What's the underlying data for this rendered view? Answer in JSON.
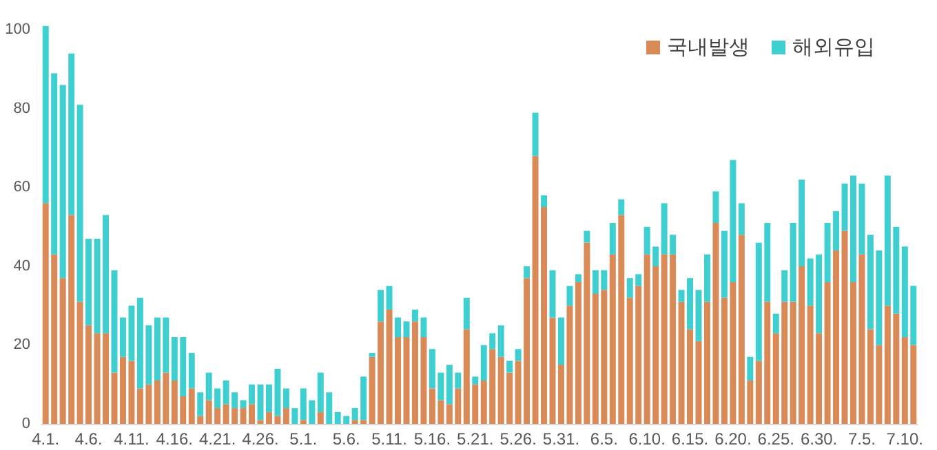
{
  "chart_data": {
    "type": "bar",
    "stacked": true,
    "categories": [
      "4.1.",
      null,
      null,
      null,
      null,
      "4.6.",
      null,
      null,
      null,
      null,
      "4.11.",
      null,
      null,
      null,
      null,
      "4.16.",
      null,
      null,
      null,
      null,
      "4.21.",
      null,
      null,
      null,
      null,
      "4.26.",
      null,
      null,
      null,
      null,
      "5.1.",
      null,
      null,
      null,
      null,
      "5.6.",
      null,
      null,
      null,
      null,
      "5.11.",
      null,
      null,
      null,
      null,
      "5.16.",
      null,
      null,
      null,
      null,
      "5.21.",
      null,
      null,
      null,
      null,
      "5.26.",
      null,
      null,
      null,
      null,
      "5.31.",
      null,
      null,
      null,
      null,
      "6.5.",
      null,
      null,
      null,
      null,
      "6.10.",
      null,
      null,
      null,
      null,
      "6.15.",
      null,
      null,
      null,
      null,
      "6.20.",
      null,
      null,
      null,
      null,
      "6.25.",
      null,
      null,
      null,
      null,
      "6.30.",
      null,
      null,
      null,
      null,
      "7.5.",
      null,
      null,
      null,
      null,
      "7.10.",
      null
    ],
    "series": [
      {
        "name": "국내발생",
        "color": "#d98a56",
        "values": [
          56,
          43,
          37,
          53,
          31,
          25,
          23,
          23,
          13,
          17,
          16,
          9,
          10,
          11,
          13,
          11,
          7,
          9,
          2,
          6,
          4,
          5,
          4,
          4,
          5,
          1,
          3,
          2,
          4,
          0,
          1,
          0,
          3,
          0,
          0,
          0,
          1,
          1,
          17,
          26,
          29,
          22,
          22,
          26,
          22,
          9,
          6,
          5,
          9,
          24,
          10,
          11,
          19,
          17,
          13,
          16,
          37,
          68,
          55,
          27,
          15,
          30,
          36,
          46,
          33,
          34,
          43,
          53,
          32,
          35,
          43,
          40,
          43,
          43,
          31,
          24,
          21,
          31,
          51,
          32,
          36,
          48,
          11,
          16,
          31,
          23,
          31,
          31,
          40,
          30,
          23,
          36,
          44,
          49,
          36,
          43,
          24,
          20,
          30,
          28,
          22,
          20
        ]
      },
      {
        "name": "해외유입",
        "color": "#40cfd0",
        "values": [
          45,
          46,
          49,
          41,
          50,
          22,
          24,
          30,
          26,
          10,
          14,
          23,
          15,
          16,
          14,
          11,
          15,
          9,
          6,
          7,
          5,
          6,
          4,
          2,
          5,
          9,
          7,
          12,
          5,
          4,
          8,
          6,
          10,
          8,
          3,
          2,
          3,
          11,
          1,
          8,
          6,
          5,
          4,
          3,
          5,
          10,
          7,
          10,
          4,
          8,
          2,
          9,
          4,
          8,
          3,
          3,
          3,
          11,
          3,
          12,
          12,
          5,
          2,
          3,
          6,
          5,
          8,
          4,
          5,
          3,
          7,
          5,
          13,
          5,
          3,
          13,
          13,
          12,
          8,
          17,
          31,
          8,
          6,
          30,
          20,
          5,
          8,
          20,
          22,
          12,
          20,
          15,
          10,
          12,
          27,
          18,
          24,
          24,
          33,
          22,
          23,
          15
        ]
      }
    ],
    "ylim": [
      0,
      102
    ],
    "yticks": [
      0,
      20,
      40,
      60,
      80,
      100
    ],
    "grid": false,
    "legend": "top right"
  }
}
